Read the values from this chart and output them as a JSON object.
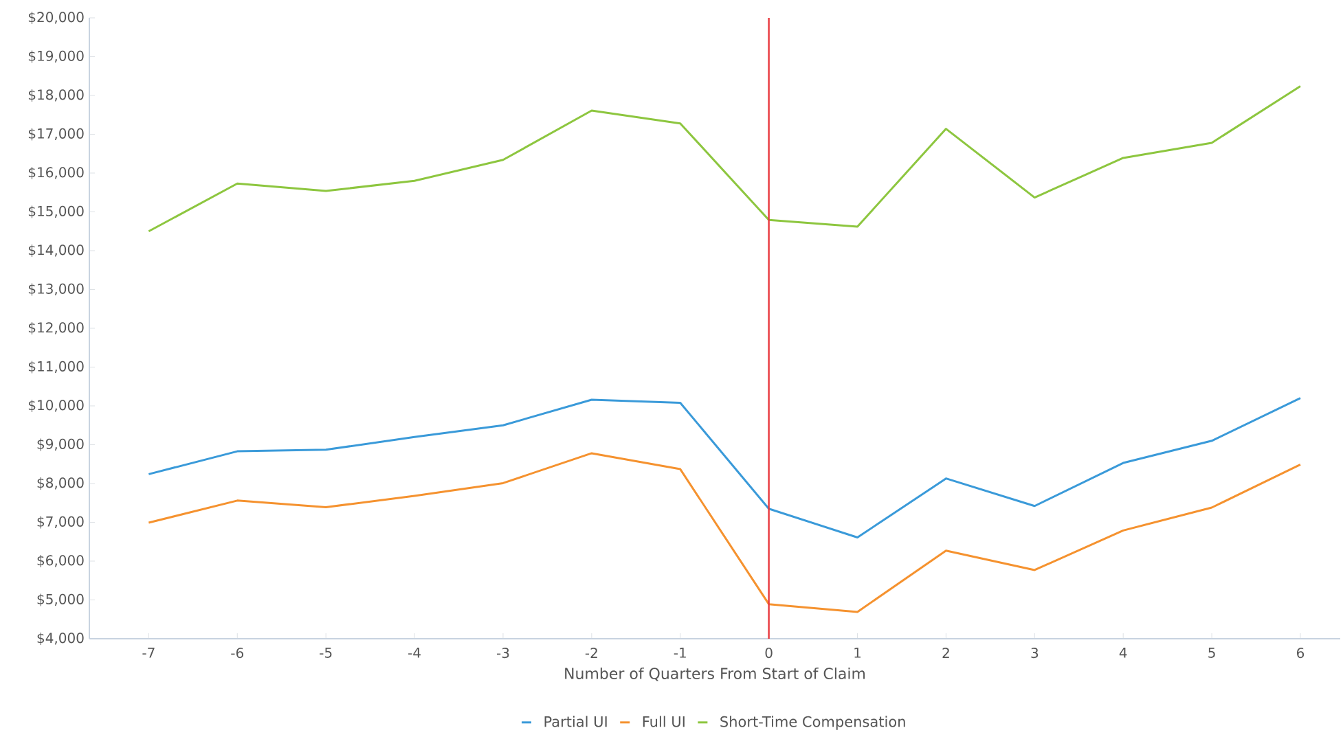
{
  "chart_data": {
    "type": "line",
    "xlabel": "Number of Quarters From Start of Claim",
    "x": [
      -7,
      -6,
      -5,
      -4,
      -3,
      -2,
      -1,
      0,
      1,
      2,
      3,
      4,
      5,
      6
    ],
    "series": [
      {
        "name": "Partial UI",
        "color": "#3a9ad9",
        "values": [
          8240,
          8830,
          8870,
          9200,
          9500,
          10160,
          10080,
          7350,
          6610,
          8130,
          7420,
          8530,
          9100,
          10200
        ]
      },
      {
        "name": "Full UI",
        "color": "#f5922f",
        "values": [
          6990,
          7560,
          7390,
          7680,
          8010,
          8780,
          8370,
          4890,
          4690,
          6270,
          5770,
          6790,
          7380,
          8490
        ]
      },
      {
        "name": "Short-Time Compensation",
        "color": "#8dc63f",
        "values": [
          14500,
          15730,
          15540,
          15800,
          16340,
          17610,
          17280,
          14790,
          14620,
          17140,
          15370,
          16390,
          16780,
          18240
        ]
      }
    ],
    "xlim": [
      -7.67,
      6.45
    ],
    "xticks": [
      -7,
      -6,
      -5,
      -4,
      -3,
      -2,
      -1,
      0,
      1,
      2,
      3,
      4,
      5,
      6
    ],
    "ylim": [
      4000,
      20000
    ],
    "yticks": [
      {
        "value": 4000,
        "label": "$4,000"
      },
      {
        "value": 5000,
        "label": "$5,000"
      },
      {
        "value": 6000,
        "label": "$6,000"
      },
      {
        "value": 7000,
        "label": "$7,000"
      },
      {
        "value": 8000,
        "label": "$8,000"
      },
      {
        "value": 9000,
        "label": "$9,000"
      },
      {
        "value": 10000,
        "label": "$10,000"
      },
      {
        "value": 11000,
        "label": "$11,000"
      },
      {
        "value": 12000,
        "label": "$12,000"
      },
      {
        "value": 13000,
        "label": "$13,000"
      },
      {
        "value": 14000,
        "label": "$14,000"
      },
      {
        "value": 15000,
        "label": "$15,000"
      },
      {
        "value": 16000,
        "label": "$16,000"
      },
      {
        "value": 17000,
        "label": "$17,000"
      },
      {
        "value": 18000,
        "label": "$18,000"
      },
      {
        "value": 19000,
        "label": "$19,000"
      },
      {
        "value": 20000,
        "label": "$20,000"
      }
    ],
    "ref_lines": [
      {
        "axis": "x",
        "value": 0,
        "color": "#e8383d"
      }
    ],
    "grid": false,
    "legend": "bottom",
    "marker": "none",
    "line_style": "solid"
  }
}
